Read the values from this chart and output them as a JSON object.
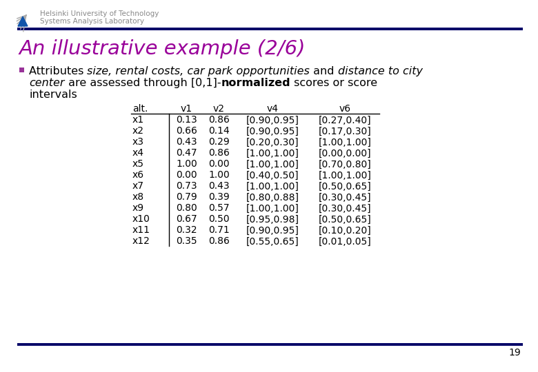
{
  "title": "An illustrative example (2/6)",
  "header_text1": "Helsinki University of Technology",
  "header_text2": "Systems Analysis Laboratory",
  "table_headers": [
    "alt.",
    "v1",
    "v2",
    "v4",
    "v6"
  ],
  "table_data": [
    [
      "x1",
      "0.13",
      "0.86",
      "[0.90,0.95]",
      "[0.27,0.40]"
    ],
    [
      "x2",
      "0.66",
      "0.14",
      "[0.90,0.95]",
      "[0.17,0.30]"
    ],
    [
      "x3",
      "0.43",
      "0.29",
      "[0.20,0.30]",
      "[1.00,1.00]"
    ],
    [
      "x4",
      "0.47",
      "0.86",
      "[1.00,1.00]",
      "[0.00,0.00]"
    ],
    [
      "x5",
      "1.00",
      "0.00",
      "[1.00,1.00]",
      "[0.70,0.80]"
    ],
    [
      "x6",
      "0.00",
      "1.00",
      "[0.40,0.50]",
      "[1.00,1.00]"
    ],
    [
      "x7",
      "0.73",
      "0.43",
      "[1.00,1.00]",
      "[0.50,0.65]"
    ],
    [
      "x8",
      "0.79",
      "0.39",
      "[0.80,0.88]",
      "[0.30,0.45]"
    ],
    [
      "x9",
      "0.80",
      "0.57",
      "[1.00,1.00]",
      "[0.30,0.45]"
    ],
    [
      "x10",
      "0.67",
      "0.50",
      "[0.95,0.98]",
      "[0.50,0.65]"
    ],
    [
      "x11",
      "0.32",
      "0.71",
      "[0.90,0.95]",
      "[0.10,0.20]"
    ],
    [
      "x12",
      "0.35",
      "0.86",
      "[0.55,0.65]",
      "[0.01,0.05]"
    ]
  ],
  "page_number": "19",
  "bg_color": "#ffffff",
  "dark_blue": "#000066",
  "title_color": "#990099",
  "text_color": "#000000",
  "header_color": "#888888",
  "bullet_color": "#993399"
}
